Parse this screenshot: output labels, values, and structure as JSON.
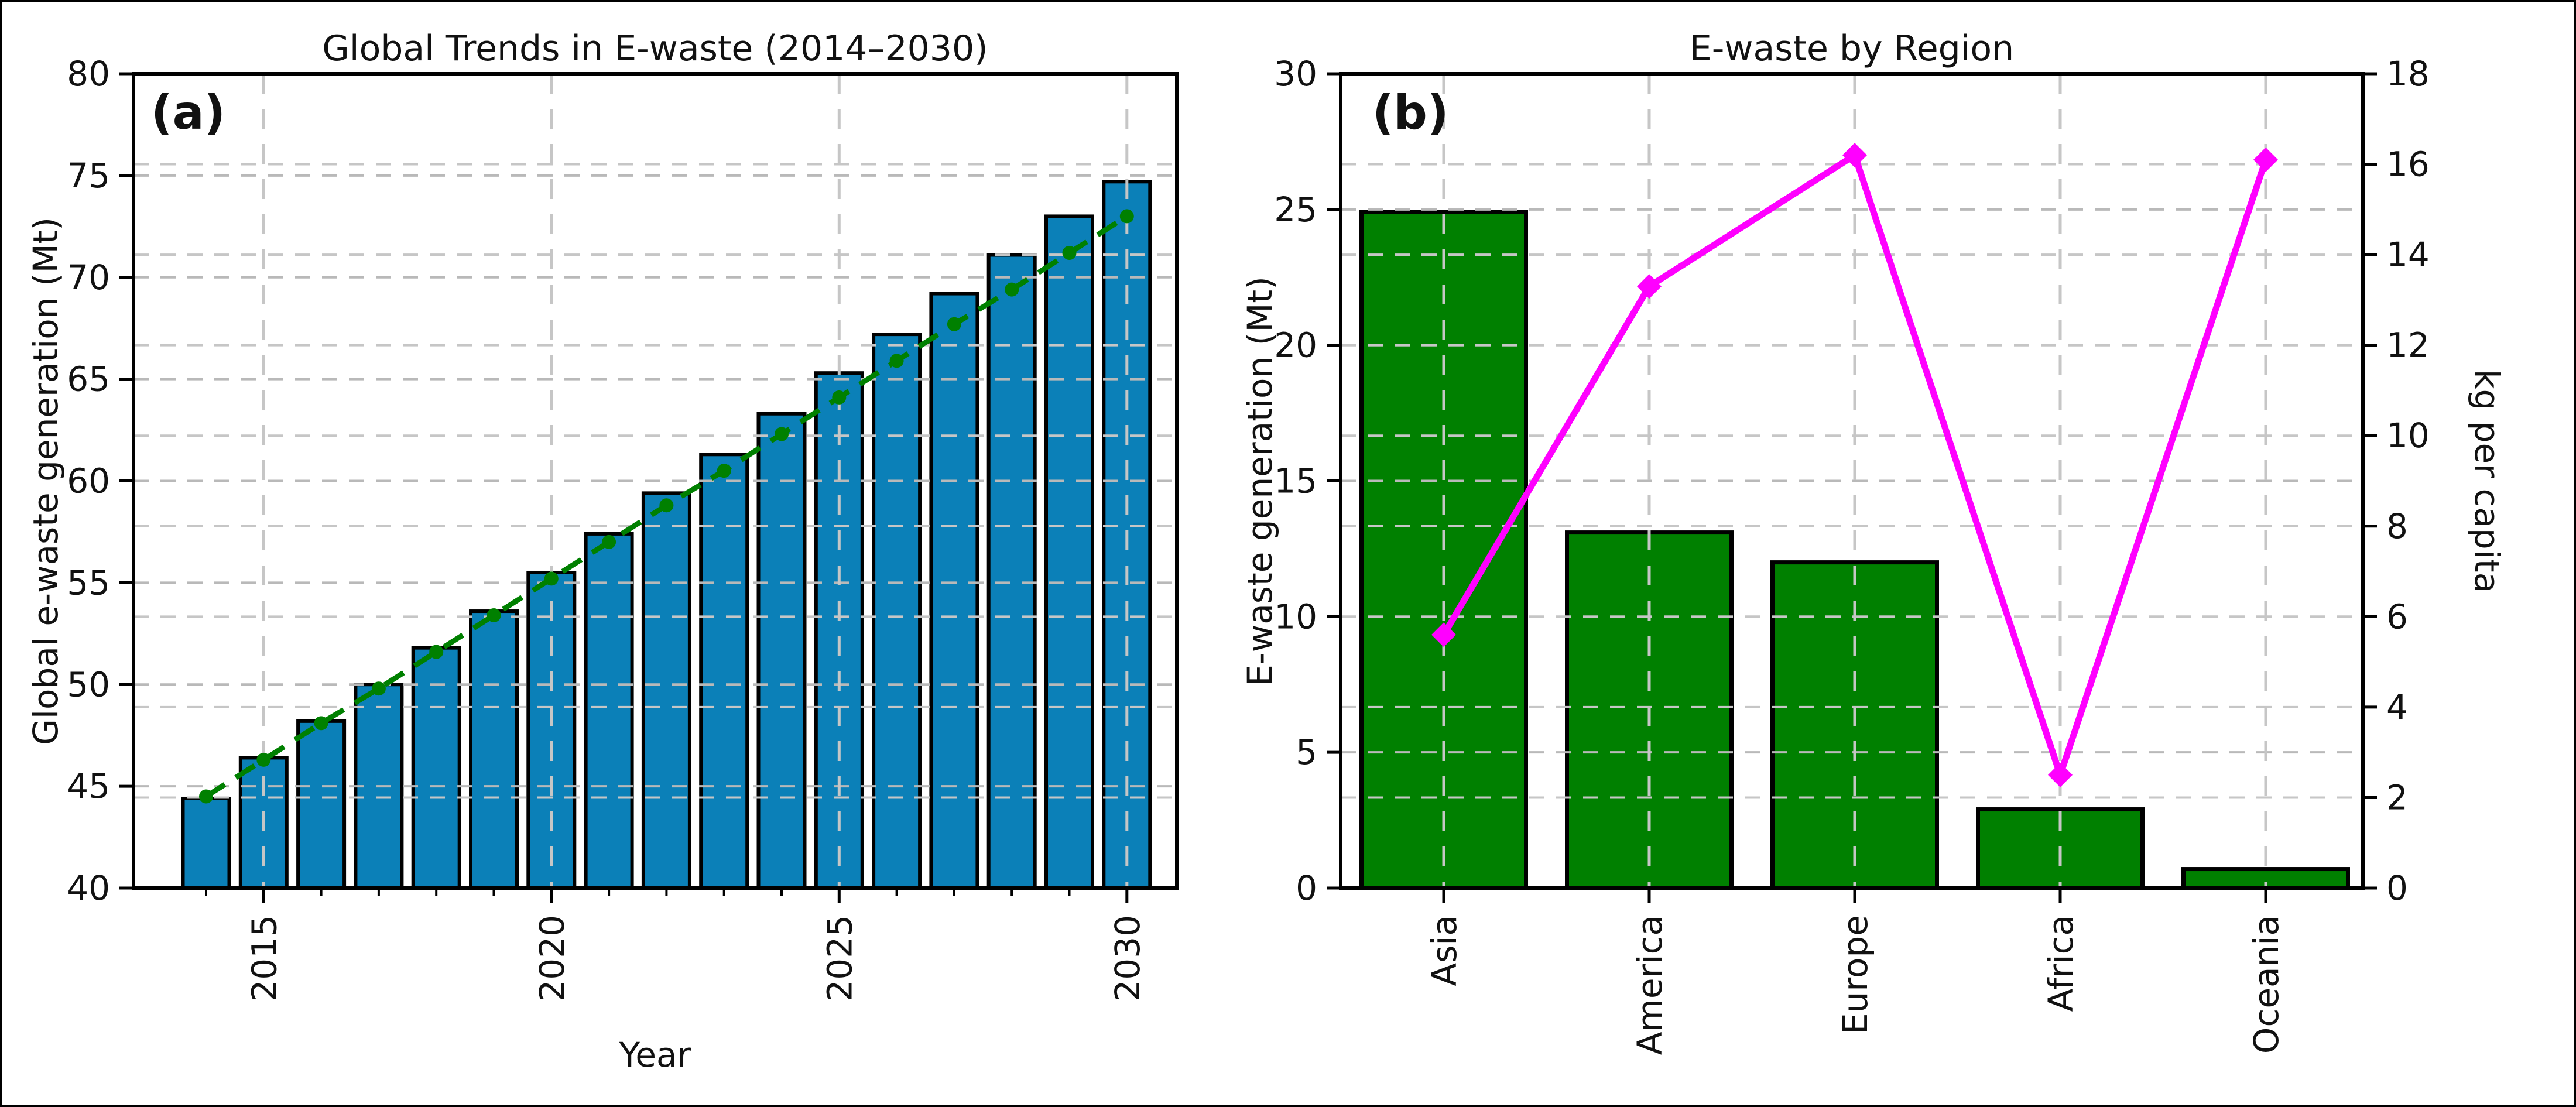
{
  "figure": {
    "panel_a_tag": "(a)",
    "panel_b_tag": "(b)"
  },
  "colors": {
    "bar_blue": "#0b80b8",
    "bar_green": "#008000",
    "trend_green": "#008000",
    "line_magenta": "#ff00ff",
    "edge_black": "#000000",
    "grid_gray": "#b9b9b9",
    "grid_gray_light": "#c6c6c6",
    "text": "#111111"
  },
  "chart_data": [
    {
      "type": "bar",
      "title": "Global Trends in E-waste (2014–2030)",
      "xlabel": "Year",
      "ylabel": "Global e-waste generation (Mt)",
      "ylim": [
        40,
        80
      ],
      "yticks": [
        40,
        45,
        50,
        55,
        60,
        65,
        70,
        75,
        80
      ],
      "grid": true,
      "legend_position": "none",
      "categories": [
        2014,
        2015,
        2016,
        2017,
        2018,
        2019,
        2020,
        2021,
        2022,
        2023,
        2024,
        2025,
        2026,
        2027,
        2028,
        2029,
        2030
      ],
      "xtick_labels_shown": [
        "2015",
        "2020",
        "2025",
        "2030"
      ],
      "values": [
        44.4,
        46.4,
        48.2,
        50.0,
        51.8,
        53.6,
        55.5,
        57.4,
        59.4,
        61.3,
        63.3,
        65.3,
        67.2,
        69.2,
        71.1,
        73.0,
        74.7
      ],
      "series": [
        {
          "name": "e-waste bars (Mt)",
          "style": "bar",
          "values": [
            44.4,
            46.4,
            48.2,
            50.0,
            51.8,
            53.6,
            55.5,
            57.4,
            59.4,
            61.3,
            63.3,
            65.3,
            67.2,
            69.2,
            71.1,
            73.0,
            74.7
          ]
        },
        {
          "name": "linear trend (dashed, dot markers)",
          "style": "dashed-line",
          "values": [
            44.5,
            46.3,
            48.1,
            49.8,
            51.6,
            53.4,
            55.2,
            57.0,
            58.8,
            60.5,
            62.3,
            64.1,
            65.9,
            67.7,
            69.4,
            71.2,
            73.0
          ]
        }
      ]
    },
    {
      "type": "bar",
      "title": "E-waste by Region",
      "xlabel": "",
      "ylabel_left": "E-waste generation (Mt)",
      "ylabel_right": "kg per capita",
      "ylim_left": [
        0,
        30
      ],
      "ylim_right": [
        0,
        18
      ],
      "yticks_left": [
        0,
        5,
        10,
        15,
        20,
        25,
        30
      ],
      "yticks_right": [
        0,
        2,
        4,
        6,
        8,
        10,
        12,
        14,
        16,
        18
      ],
      "grid": true,
      "legend_position": "none",
      "categories": [
        "Asia",
        "America",
        "Europe",
        "Africa",
        "Oceania"
      ],
      "series": [
        {
          "name": "E-waste generation (Mt)",
          "style": "bar",
          "axis": "left",
          "values": [
            24.9,
            13.1,
            12.0,
            2.9,
            0.7
          ]
        },
        {
          "name": "kg per capita",
          "style": "line-diamond",
          "axis": "right",
          "values": [
            5.6,
            13.3,
            16.2,
            2.5,
            16.1
          ]
        }
      ]
    }
  ]
}
